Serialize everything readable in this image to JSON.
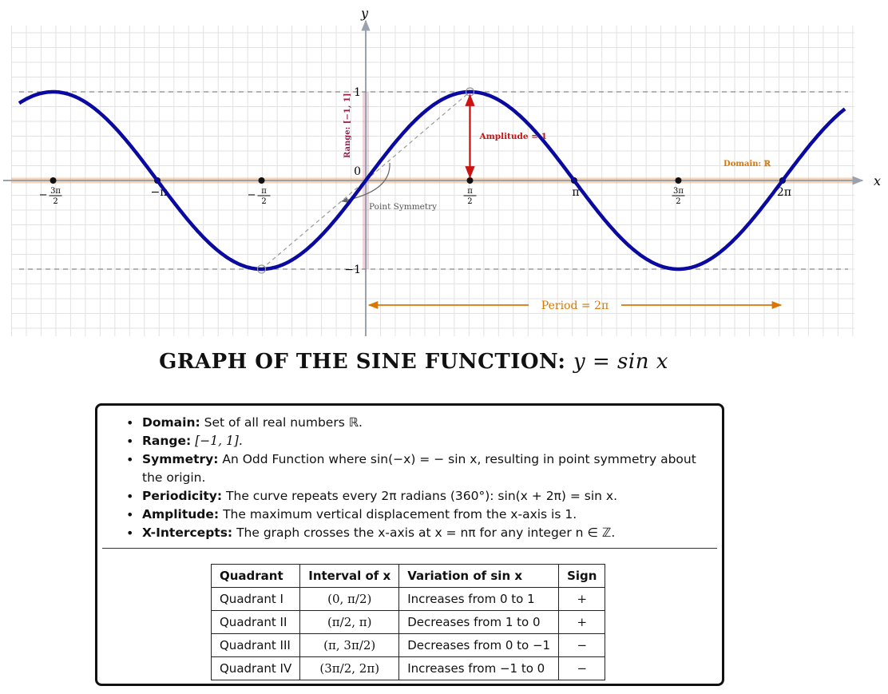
{
  "chart_data": {
    "type": "line",
    "function": "y = sin x",
    "title_text": "GRAPH OF THE SINE FUNCTION:",
    "title_math": "y = sin x",
    "xlabel": "x",
    "ylabel": "y",
    "x_range": [
      -5.2,
      6.9
    ],
    "y_range": [
      -1.4,
      1.7
    ],
    "x_ticks": [
      {
        "value": -4.712389,
        "num": "3π",
        "den": "2",
        "sign": "−",
        "frac": true
      },
      {
        "value": -3.141593,
        "label": "−π",
        "frac": false
      },
      {
        "value": -1.570796,
        "num": "π",
        "den": "2",
        "sign": "−",
        "frac": true
      },
      {
        "value": 1.570796,
        "num": "π",
        "den": "2",
        "sign": "",
        "frac": true
      },
      {
        "value": 3.141593,
        "label": "π",
        "frac": false
      },
      {
        "value": 4.712389,
        "num": "3π",
        "den": "2",
        "sign": "",
        "frac": true
      },
      {
        "value": 6.283185,
        "label": "2π",
        "frac": false
      }
    ],
    "y_ticks": [
      {
        "value": 1,
        "label": "1"
      },
      {
        "value": 0,
        "label": "0"
      },
      {
        "value": -1,
        "label": "−1"
      }
    ],
    "grid": true,
    "annotations": {
      "amplitude": "Amplitude = 1",
      "domain": "Domain: ℝ",
      "range": "Range: [−1, 1]",
      "symmetry": "Point Symmetry",
      "period": "Period = 2π"
    },
    "colors": {
      "curve": "#0a0aa0",
      "axis": "#9aa3ad",
      "grid": "#e2e2e2",
      "amplitude": "#cc1111",
      "domain": "#e9a263",
      "range": "#9e1b4c",
      "period": "#d97706",
      "guides": "#555555"
    }
  },
  "info": {
    "facts": [
      {
        "label": "Domain:",
        "text": "Set of all real numbers ℝ."
      },
      {
        "label": "Range:",
        "text": "[−1, 1]."
      },
      {
        "label": "Symmetry:",
        "text": "An Odd Function where sin(−x) = − sin x, resulting in point symmetry about the origin."
      },
      {
        "label": "Periodicity:",
        "text": "The curve repeats every 2π radians (360°): sin(x + 2π) = sin x."
      },
      {
        "label": "Amplitude:",
        "text": "The maximum vertical displacement from the x-axis is 1."
      },
      {
        "label": "X-Intercepts:",
        "text": "The graph crosses the x-axis at x = nπ for any integer n ∈ ℤ."
      }
    ],
    "table": {
      "headers": [
        "Quadrant",
        "Interval of x",
        "Variation of sin x",
        "Sign"
      ],
      "rows": [
        [
          "Quadrant I",
          "(0, π/2)",
          "Increases from 0 to 1",
          "+"
        ],
        [
          "Quadrant II",
          "(π/2, π)",
          "Decreases from 1 to 0",
          "+"
        ],
        [
          "Quadrant III",
          "(π, 3π/2)",
          "Decreases from 0 to −1",
          "−"
        ],
        [
          "Quadrant IV",
          "(3π/2, 2π)",
          "Increases from −1 to 0",
          "−"
        ]
      ]
    }
  }
}
